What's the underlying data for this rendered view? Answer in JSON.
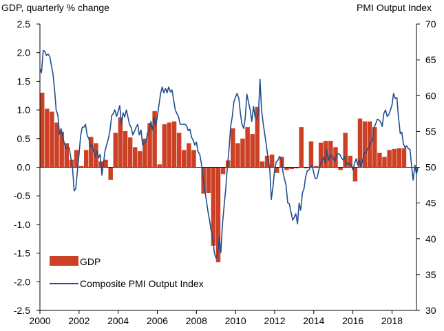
{
  "chart_data": {
    "type": "bar+line",
    "left_axis_title": "GDP, quarterly % change",
    "right_axis_title": "PMI Output  Index",
    "y_left": {
      "min": -2.5,
      "max": 2.5,
      "ticks": [
        "2.5",
        "2.0",
        "1.5",
        "1.0",
        "0.5",
        "0.0",
        "-0.5",
        "-1.0",
        "-1.5",
        "-2.0",
        "-2.5"
      ]
    },
    "y_right": {
      "min": 30,
      "max": 70,
      "ticks": [
        "70",
        "65",
        "60",
        "55",
        "50",
        "45",
        "40",
        "35",
        "30"
      ]
    },
    "x_axis": {
      "min": 2000,
      "max": 2019.25,
      "ticks": [
        "2000",
        "2002",
        "2004",
        "2006",
        "2008",
        "2010",
        "2012",
        "2014",
        "2016",
        "2018"
      ]
    },
    "gridlines": false,
    "legend_position": "bottom-left",
    "colors": {
      "bar": "#cc4125",
      "line": "#1f4e8c",
      "axis": "#000000"
    },
    "series": [
      {
        "name": "GDP",
        "kind": "bar",
        "quarters": [
          "2000Q1",
          "2000Q2",
          "2000Q3",
          "2000Q4",
          "2001Q1",
          "2001Q2",
          "2001Q3",
          "2001Q4",
          "2002Q1",
          "2002Q2",
          "2002Q3",
          "2002Q4",
          "2003Q1",
          "2003Q2",
          "2003Q3",
          "2003Q4",
          "2004Q1",
          "2004Q2",
          "2004Q3",
          "2004Q4",
          "2005Q1",
          "2005Q2",
          "2005Q3",
          "2005Q4",
          "2006Q1",
          "2006Q2",
          "2006Q3",
          "2006Q4",
          "2007Q1",
          "2007Q2",
          "2007Q3",
          "2007Q4",
          "2008Q1",
          "2008Q2",
          "2008Q3",
          "2008Q4",
          "2009Q1",
          "2009Q2",
          "2009Q3",
          "2009Q4",
          "2010Q1",
          "2010Q2",
          "2010Q3",
          "2010Q4",
          "2011Q1",
          "2011Q2",
          "2011Q3",
          "2011Q4",
          "2012Q1",
          "2012Q2",
          "2012Q3",
          "2012Q4",
          "2013Q1",
          "2013Q2",
          "2013Q3",
          "2013Q4",
          "2014Q1",
          "2014Q2",
          "2014Q3",
          "2014Q4",
          "2015Q1",
          "2015Q2",
          "2015Q3",
          "2015Q4",
          "2016Q1",
          "2016Q2",
          "2016Q3",
          "2016Q4",
          "2017Q1",
          "2017Q2",
          "2017Q3",
          "2017Q4",
          "2018Q1",
          "2018Q2",
          "2018Q3",
          "2018Q4"
        ],
        "values": [
          1.3,
          1.02,
          0.97,
          0.78,
          0.62,
          0.42,
          0.13,
          0.3,
          0.02,
          0.3,
          0.53,
          0.42,
          0.1,
          0.13,
          -0.22,
          0.6,
          0.87,
          0.63,
          0.52,
          0.35,
          0.28,
          0.5,
          0.77,
          0.98,
          0.05,
          0.75,
          0.78,
          0.8,
          0.6,
          0.3,
          0.42,
          0.3,
          0.0,
          -0.46,
          -0.45,
          -1.37,
          -1.66,
          -0.12,
          0.12,
          0.68,
          0.42,
          0.5,
          0.7,
          0.58,
          1.05,
          0.1,
          0.2,
          0.22,
          -0.1,
          0.18,
          -0.05,
          -0.03,
          -0.02,
          0.7,
          -0.02,
          0.45,
          0.02,
          0.43,
          0.46,
          0.46,
          0.35,
          -0.05,
          0.6,
          0.2,
          -0.25,
          0.85,
          0.8,
          0.8,
          0.7,
          0.25,
          0.18,
          0.3,
          0.32,
          0.33,
          0.33,
          0.0
        ]
      },
      {
        "name": "Composite PMI Output Index",
        "kind": "line",
        "points": [
          [
            2000.0,
            63.8
          ],
          [
            2000.08,
            63.2
          ],
          [
            2000.17,
            66.3
          ],
          [
            2000.25,
            66.2
          ],
          [
            2000.33,
            65.6
          ],
          [
            2000.42,
            65.8
          ],
          [
            2000.5,
            65.5
          ],
          [
            2000.58,
            64.3
          ],
          [
            2000.67,
            63.0
          ],
          [
            2000.75,
            60.8
          ],
          [
            2000.83,
            58.0
          ],
          [
            2000.92,
            57.2
          ],
          [
            2001.0,
            54.6
          ],
          [
            2001.08,
            55.4
          ],
          [
            2001.17,
            54.2
          ],
          [
            2001.25,
            53.3
          ],
          [
            2001.33,
            52.6
          ],
          [
            2001.42,
            52.8
          ],
          [
            2001.5,
            52.7
          ],
          [
            2001.58,
            51.3
          ],
          [
            2001.67,
            49.8
          ],
          [
            2001.75,
            46.7
          ],
          [
            2001.83,
            47.0
          ],
          [
            2001.92,
            49.6
          ],
          [
            2002.0,
            51.8
          ],
          [
            2002.08,
            54.4
          ],
          [
            2002.17,
            55.6
          ],
          [
            2002.25,
            55.6
          ],
          [
            2002.33,
            56.0
          ],
          [
            2002.42,
            54.4
          ],
          [
            2002.5,
            54.0
          ],
          [
            2002.58,
            52.9
          ],
          [
            2002.67,
            53.1
          ],
          [
            2002.75,
            52.3
          ],
          [
            2002.83,
            51.5
          ],
          [
            2002.92,
            52.3
          ],
          [
            2003.0,
            51.3
          ],
          [
            2003.08,
            51.8
          ],
          [
            2003.17,
            48.9
          ],
          [
            2003.25,
            50.6
          ],
          [
            2003.33,
            52.3
          ],
          [
            2003.42,
            53.2
          ],
          [
            2003.5,
            54.0
          ],
          [
            2003.58,
            55.1
          ],
          [
            2003.67,
            57.2
          ],
          [
            2003.75,
            57.5
          ],
          [
            2003.83,
            58.0
          ],
          [
            2003.92,
            57.1
          ],
          [
            2004.0,
            57.8
          ],
          [
            2004.08,
            58.6
          ],
          [
            2004.17,
            56.0
          ],
          [
            2004.25,
            57.6
          ],
          [
            2004.33,
            57.0
          ],
          [
            2004.42,
            58.0
          ],
          [
            2004.5,
            57.0
          ],
          [
            2004.58,
            56.0
          ],
          [
            2004.67,
            55.5
          ],
          [
            2004.75,
            54.5
          ],
          [
            2004.83,
            55.0
          ],
          [
            2004.92,
            55.6
          ],
          [
            2005.0,
            56.0
          ],
          [
            2005.08,
            54.5
          ],
          [
            2005.17,
            55.2
          ],
          [
            2005.25,
            53.1
          ],
          [
            2005.33,
            53.4
          ],
          [
            2005.42,
            53.5
          ],
          [
            2005.5,
            54.8
          ],
          [
            2005.58,
            55.0
          ],
          [
            2005.67,
            56.4
          ],
          [
            2005.75,
            55.2
          ],
          [
            2005.83,
            57.0
          ],
          [
            2005.92,
            55.8
          ],
          [
            2006.0,
            57.0
          ],
          [
            2006.08,
            58.6
          ],
          [
            2006.17,
            60.3
          ],
          [
            2006.25,
            61.2
          ],
          [
            2006.33,
            60.4
          ],
          [
            2006.42,
            61.0
          ],
          [
            2006.5,
            60.4
          ],
          [
            2006.58,
            61.2
          ],
          [
            2006.67,
            60.5
          ],
          [
            2006.75,
            60.8
          ],
          [
            2006.83,
            59.5
          ],
          [
            2006.92,
            58.0
          ],
          [
            2007.0,
            57.5
          ],
          [
            2007.08,
            57.1
          ],
          [
            2007.17,
            56.0
          ],
          [
            2007.25,
            56.0
          ],
          [
            2007.33,
            56.0
          ],
          [
            2007.42,
            56.0
          ],
          [
            2007.5,
            55.8
          ],
          [
            2007.58,
            55.1
          ],
          [
            2007.67,
            55.3
          ],
          [
            2007.75,
            54.2
          ],
          [
            2007.83,
            53.8
          ],
          [
            2007.92,
            53.1
          ],
          [
            2008.0,
            53.5
          ],
          [
            2008.08,
            52.2
          ],
          [
            2008.17,
            51.8
          ],
          [
            2008.25,
            50.6
          ],
          [
            2008.33,
            48.8
          ],
          [
            2008.42,
            47.0
          ],
          [
            2008.5,
            45.5
          ],
          [
            2008.58,
            44.0
          ],
          [
            2008.67,
            42.6
          ],
          [
            2008.75,
            41.2
          ],
          [
            2008.83,
            40.3
          ],
          [
            2008.92,
            38.0
          ],
          [
            2009.0,
            37.3
          ],
          [
            2009.08,
            37.8
          ],
          [
            2009.17,
            40.2
          ],
          [
            2009.25,
            38.1
          ],
          [
            2009.33,
            42.0
          ],
          [
            2009.42,
            44.7
          ],
          [
            2009.5,
            47.0
          ],
          [
            2009.58,
            49.9
          ],
          [
            2009.67,
            52.6
          ],
          [
            2009.75,
            55.7
          ],
          [
            2009.83,
            57.0
          ],
          [
            2009.92,
            59.2
          ],
          [
            2010.0,
            59.8
          ],
          [
            2010.08,
            60.3
          ],
          [
            2010.17,
            59.6
          ],
          [
            2010.25,
            57.5
          ],
          [
            2010.33,
            56.0
          ],
          [
            2010.42,
            55.4
          ],
          [
            2010.5,
            57.0
          ],
          [
            2010.58,
            60.2
          ],
          [
            2010.67,
            59.0
          ],
          [
            2010.75,
            58.0
          ],
          [
            2010.83,
            56.4
          ],
          [
            2010.92,
            58.5
          ],
          [
            2011.0,
            57.0
          ],
          [
            2011.08,
            56.7
          ],
          [
            2011.17,
            57.4
          ],
          [
            2011.25,
            62.3
          ],
          [
            2011.33,
            58.0
          ],
          [
            2011.42,
            56.0
          ],
          [
            2011.5,
            54.5
          ],
          [
            2011.58,
            53.0
          ],
          [
            2011.67,
            51.0
          ],
          [
            2011.75,
            49.8
          ],
          [
            2011.83,
            45.5
          ],
          [
            2011.92,
            47.4
          ],
          [
            2012.0,
            49.7
          ],
          [
            2012.08,
            50.7
          ],
          [
            2012.17,
            51.0
          ],
          [
            2012.25,
            51.5
          ],
          [
            2012.33,
            51.3
          ],
          [
            2012.42,
            49.4
          ],
          [
            2012.5,
            48.4
          ],
          [
            2012.58,
            47.5
          ],
          [
            2012.67,
            45.0
          ],
          [
            2012.75,
            44.9
          ],
          [
            2012.83,
            43.8
          ],
          [
            2012.92,
            42.6
          ],
          [
            2013.0,
            43.0
          ],
          [
            2013.08,
            43.5
          ],
          [
            2013.17,
            42.1
          ],
          [
            2013.25,
            45.0
          ],
          [
            2013.33,
            44.0
          ],
          [
            2013.42,
            46.4
          ],
          [
            2013.5,
            47.0
          ],
          [
            2013.58,
            48.6
          ],
          [
            2013.67,
            49.5
          ],
          [
            2013.75,
            49.6
          ],
          [
            2013.83,
            50.0
          ],
          [
            2013.92,
            50.2
          ],
          [
            2014.0,
            49.2
          ],
          [
            2014.08,
            48.4
          ],
          [
            2014.17,
            48.5
          ],
          [
            2014.25,
            49.5
          ],
          [
            2014.33,
            50.5
          ],
          [
            2014.42,
            50.8
          ],
          [
            2014.5,
            51.4
          ],
          [
            2014.58,
            50.6
          ],
          [
            2014.67,
            52.4
          ],
          [
            2014.75,
            51.0
          ],
          [
            2014.83,
            51.5
          ],
          [
            2014.92,
            51.7
          ],
          [
            2015.0,
            51.2
          ],
          [
            2015.08,
            50.8
          ],
          [
            2015.17,
            51.7
          ],
          [
            2015.25,
            51.9
          ],
          [
            2015.33,
            51.8
          ],
          [
            2015.42,
            51.3
          ],
          [
            2015.5,
            51.0
          ],
          [
            2015.58,
            51.5
          ],
          [
            2015.67,
            50.3
          ],
          [
            2015.75,
            50.6
          ],
          [
            2015.83,
            50.3
          ],
          [
            2015.92,
            50.4
          ],
          [
            2016.0,
            49.6
          ],
          [
            2016.08,
            50.5
          ],
          [
            2016.17,
            51.2
          ],
          [
            2016.25,
            50.3
          ],
          [
            2016.33,
            51.0
          ],
          [
            2016.42,
            50.0
          ],
          [
            2016.5,
            51.0
          ],
          [
            2016.58,
            52.0
          ],
          [
            2016.67,
            52.1
          ],
          [
            2016.75,
            52.6
          ],
          [
            2016.83,
            52.8
          ],
          [
            2016.92,
            53.5
          ],
          [
            2017.0,
            53.7
          ],
          [
            2017.08,
            55.5
          ],
          [
            2017.17,
            56.1
          ],
          [
            2017.25,
            56.7
          ],
          [
            2017.33,
            56.6
          ],
          [
            2017.42,
            56.3
          ],
          [
            2017.5,
            55.7
          ],
          [
            2017.58,
            57.5
          ],
          [
            2017.67,
            58.0
          ],
          [
            2017.75,
            57.1
          ],
          [
            2017.83,
            57.3
          ],
          [
            2017.92,
            58.0
          ],
          [
            2018.0,
            58.7
          ],
          [
            2018.08,
            60.3
          ],
          [
            2018.17,
            59.6
          ],
          [
            2018.25,
            59.7
          ],
          [
            2018.33,
            57.0
          ],
          [
            2018.42,
            54.7
          ],
          [
            2018.5,
            54.9
          ],
          [
            2018.58,
            53.3
          ],
          [
            2018.67,
            52.7
          ],
          [
            2018.75,
            53.0
          ],
          [
            2018.83,
            52.6
          ],
          [
            2018.92,
            52.5
          ],
          [
            2019.0,
            50.2
          ],
          [
            2019.08,
            48.2
          ],
          [
            2019.17,
            50.3
          ],
          [
            2019.25,
            49.0
          ],
          [
            2019.33,
            50.0
          ]
        ]
      }
    ]
  }
}
